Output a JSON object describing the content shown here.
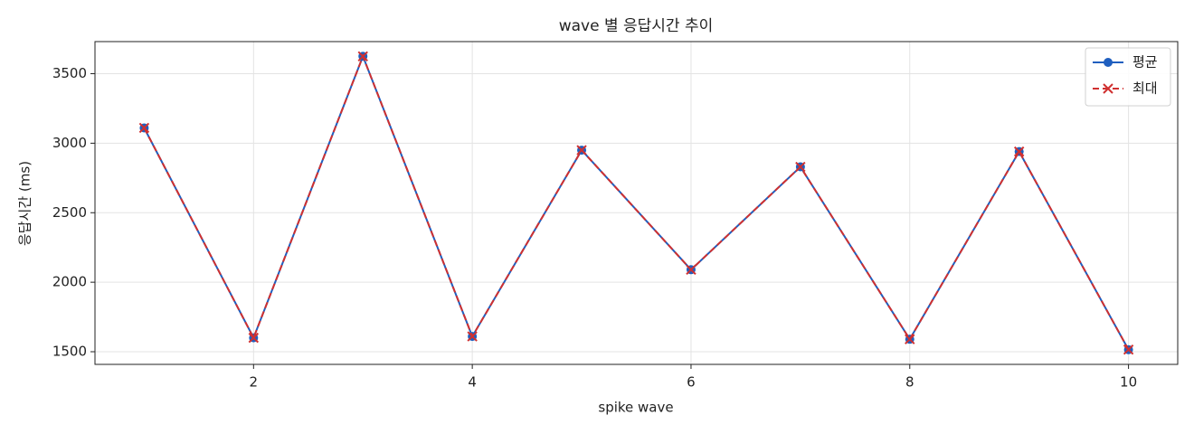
{
  "chart_data": {
    "type": "line",
    "title": "wave 별 응답시간 추이",
    "x_label": "spike wave",
    "y_label": "응답시간 (ms)",
    "x": [
      1,
      2,
      3,
      4,
      5,
      6,
      7,
      8,
      9,
      10
    ],
    "series": [
      {
        "name": "평균",
        "color": "#1f5fbf",
        "marker": "o",
        "linestyle": "solid",
        "values": [
          3110,
          1600,
          3625,
          1610,
          2950,
          2090,
          2830,
          1590,
          2940,
          1515
        ]
      },
      {
        "name": "최대",
        "color": "#d03030",
        "marker": "x",
        "linestyle": "dashed",
        "values": [
          3110,
          1600,
          3625,
          1610,
          2950,
          2090,
          2830,
          1590,
          2940,
          1515
        ]
      }
    ],
    "xlim": [
      0.55,
      10.45
    ],
    "xticks": [
      2,
      4,
      6,
      8,
      10
    ],
    "ylim": [
      1409,
      3731
    ],
    "yticks": [
      1500,
      2000,
      2500,
      3000,
      3500
    ],
    "grid": true,
    "legend": "upper right"
  }
}
